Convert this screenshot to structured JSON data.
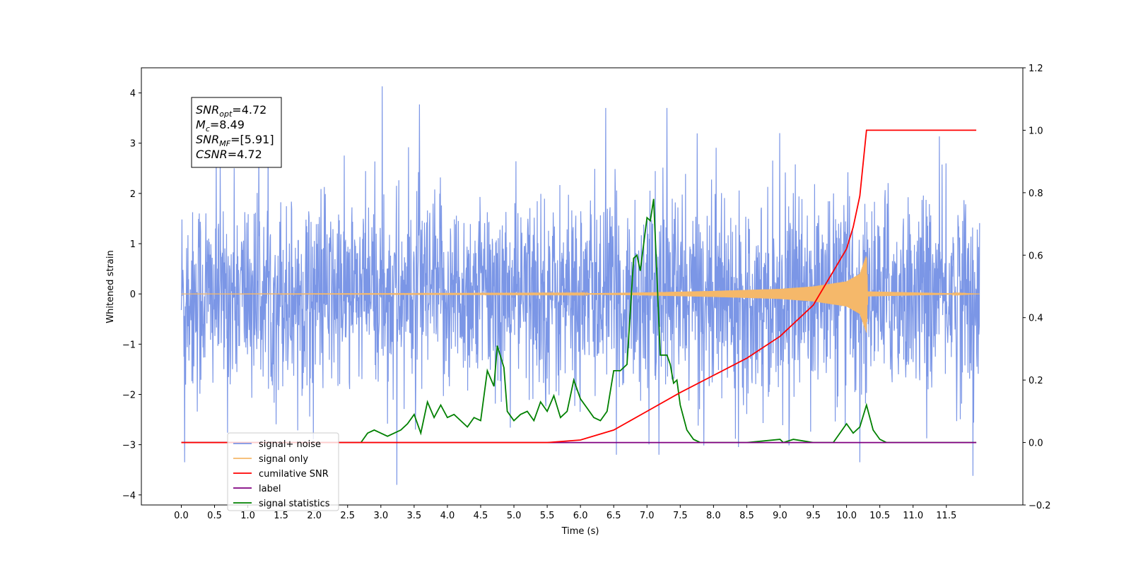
{
  "chart_data": {
    "type": "line",
    "xlabel": "Time (s)",
    "ylabel": "Whitened strain",
    "xlim": [
      -0.6,
      12.65
    ],
    "ylim": [
      -4.2,
      4.5
    ],
    "y2lim": [
      -0.2,
      1.2
    ],
    "grid": false,
    "legend_position": "lower-left",
    "x_ticks": [
      0.0,
      0.5,
      1.0,
      1.5,
      2.0,
      2.5,
      3.0,
      3.5,
      4.0,
      4.5,
      5.0,
      5.5,
      6.0,
      6.5,
      7.0,
      7.5,
      8.0,
      8.5,
      9.0,
      9.5,
      10.0,
      10.5,
      11.0,
      11.5
    ],
    "x_tick_labels": [
      "0.0",
      "0.5",
      "1.0",
      "1.5",
      "2.0",
      "2.5",
      "3.0",
      "3.5",
      "4.0",
      "4.5",
      "5.0",
      "5.5",
      "6.0",
      "6.5",
      "7.0",
      "7.5",
      "8.0",
      "8.5",
      "9.0",
      "9.5",
      "10.0",
      "10.5",
      "11.0",
      "11.5"
    ],
    "y_ticks": [
      4,
      3,
      2,
      1,
      0,
      -1,
      -2,
      -3,
      -4
    ],
    "y_tick_labels": [
      "4",
      "3",
      "2",
      "1",
      "0",
      "−1",
      "−2",
      "−3",
      "−4"
    ],
    "y2_ticks": [
      1.2,
      1.0,
      0.8,
      0.6,
      0.4,
      0.2,
      0.0,
      -0.2
    ],
    "y2_tick_labels": [
      "1.2",
      "1.0",
      "0.8",
      "0.6",
      "0.4",
      "0.2",
      "0.0",
      "−0.2"
    ],
    "annotation": {
      "lines": [
        {
          "main": "SNR",
          "sub": "opt",
          "rest": "=4.72"
        },
        {
          "main": "M",
          "sub": "c",
          "rest": "=8.49"
        },
        {
          "main": "SNR",
          "sub": "MF",
          "rest": "=[5.91]"
        },
        {
          "main": "CSNR",
          "sub": "",
          "rest": "=4.72"
        }
      ]
    },
    "series": [
      {
        "name": "signal+ noise",
        "axis": "left",
        "color": "#7b96e6",
        "kind": "noise",
        "x_range": [
          0.0,
          12.0
        ],
        "amplitude_typical": 1.4,
        "extreme_peaks": [
          {
            "x": 3.02,
            "y": 4.13
          },
          {
            "x": 3.58,
            "y": 3.77
          },
          {
            "x": 6.38,
            "y": 3.7
          },
          {
            "x": 7.3,
            "y": 3.7
          },
          {
            "x": 3.24,
            "y": -3.8
          },
          {
            "x": 11.9,
            "y": -3.62
          },
          {
            "x": 0.05,
            "y": -3.35
          },
          {
            "x": 10.2,
            "y": -3.35
          }
        ]
      },
      {
        "name": "signal only",
        "axis": "left",
        "color": "#f5b86a",
        "kind": "chirp",
        "x": [
          0.0,
          6.0,
          7.0,
          8.0,
          9.0,
          9.5,
          10.0,
          10.2,
          10.3,
          10.32,
          12.0
        ],
        "envelope": [
          0.0,
          0.01,
          0.03,
          0.06,
          0.1,
          0.15,
          0.25,
          0.4,
          0.78,
          0.05,
          0.0
        ]
      },
      {
        "name": "cumilative SNR",
        "axis": "right",
        "color": "#ff0000",
        "x": [
          0.0,
          5.5,
          6.0,
          6.5,
          7.0,
          7.5,
          8.0,
          8.5,
          9.0,
          9.5,
          10.0,
          10.1,
          10.2,
          10.3,
          11.95
        ],
        "y": [
          0.0,
          0.0,
          0.008,
          0.04,
          0.1,
          0.16,
          0.215,
          0.27,
          0.34,
          0.44,
          0.62,
          0.69,
          0.79,
          1.0,
          1.0
        ]
      },
      {
        "name": "label",
        "axis": "right",
        "color": "#800080",
        "x": [
          0.0,
          11.95
        ],
        "y": [
          0.0,
          0.0
        ]
      },
      {
        "name": "signal statistics",
        "axis": "right",
        "color": "#008000",
        "x": [
          0.0,
          2.7,
          2.8,
          2.9,
          3.0,
          3.1,
          3.2,
          3.3,
          3.4,
          3.5,
          3.6,
          3.7,
          3.8,
          3.9,
          4.0,
          4.1,
          4.2,
          4.3,
          4.4,
          4.5,
          4.6,
          4.7,
          4.75,
          4.85,
          4.9,
          5.0,
          5.1,
          5.2,
          5.3,
          5.4,
          5.5,
          5.6,
          5.7,
          5.8,
          5.9,
          6.0,
          6.1,
          6.2,
          6.3,
          6.4,
          6.5,
          6.6,
          6.7,
          6.8,
          6.85,
          6.9,
          7.0,
          7.05,
          7.1,
          7.2,
          7.3,
          7.35,
          7.4,
          7.45,
          7.5,
          7.6,
          7.7,
          7.8,
          7.9,
          8.0,
          8.5,
          9.0,
          9.05,
          9.2,
          9.5,
          9.8,
          10.0,
          10.1,
          10.2,
          10.3,
          10.4,
          10.5,
          10.6,
          11.95
        ],
        "y": [
          0.0,
          0.0,
          0.03,
          0.04,
          0.03,
          0.02,
          0.03,
          0.04,
          0.06,
          0.09,
          0.03,
          0.13,
          0.08,
          0.12,
          0.08,
          0.09,
          0.07,
          0.05,
          0.08,
          0.07,
          0.23,
          0.18,
          0.31,
          0.24,
          0.1,
          0.07,
          0.09,
          0.1,
          0.07,
          0.13,
          0.1,
          0.15,
          0.08,
          0.1,
          0.2,
          0.14,
          0.11,
          0.08,
          0.07,
          0.1,
          0.23,
          0.23,
          0.25,
          0.59,
          0.6,
          0.55,
          0.72,
          0.71,
          0.78,
          0.28,
          0.28,
          0.25,
          0.19,
          0.2,
          0.12,
          0.04,
          0.01,
          0.0,
          0.0,
          0.0,
          0.0,
          0.01,
          0.0,
          0.01,
          0.0,
          0.0,
          0.06,
          0.03,
          0.05,
          0.12,
          0.04,
          0.01,
          0.0,
          0.0
        ]
      }
    ]
  },
  "legend": {
    "items": [
      {
        "label": "signal+ noise",
        "color": "#7b96e6"
      },
      {
        "label": "signal only",
        "color": "#f5b86a"
      },
      {
        "label": "cumilative SNR",
        "color": "#ff0000"
      },
      {
        "label": "label",
        "color": "#800080"
      },
      {
        "label": "signal statistics",
        "color": "#008000"
      }
    ]
  },
  "colors": {
    "axes": "#000000",
    "background": "#ffffff"
  }
}
